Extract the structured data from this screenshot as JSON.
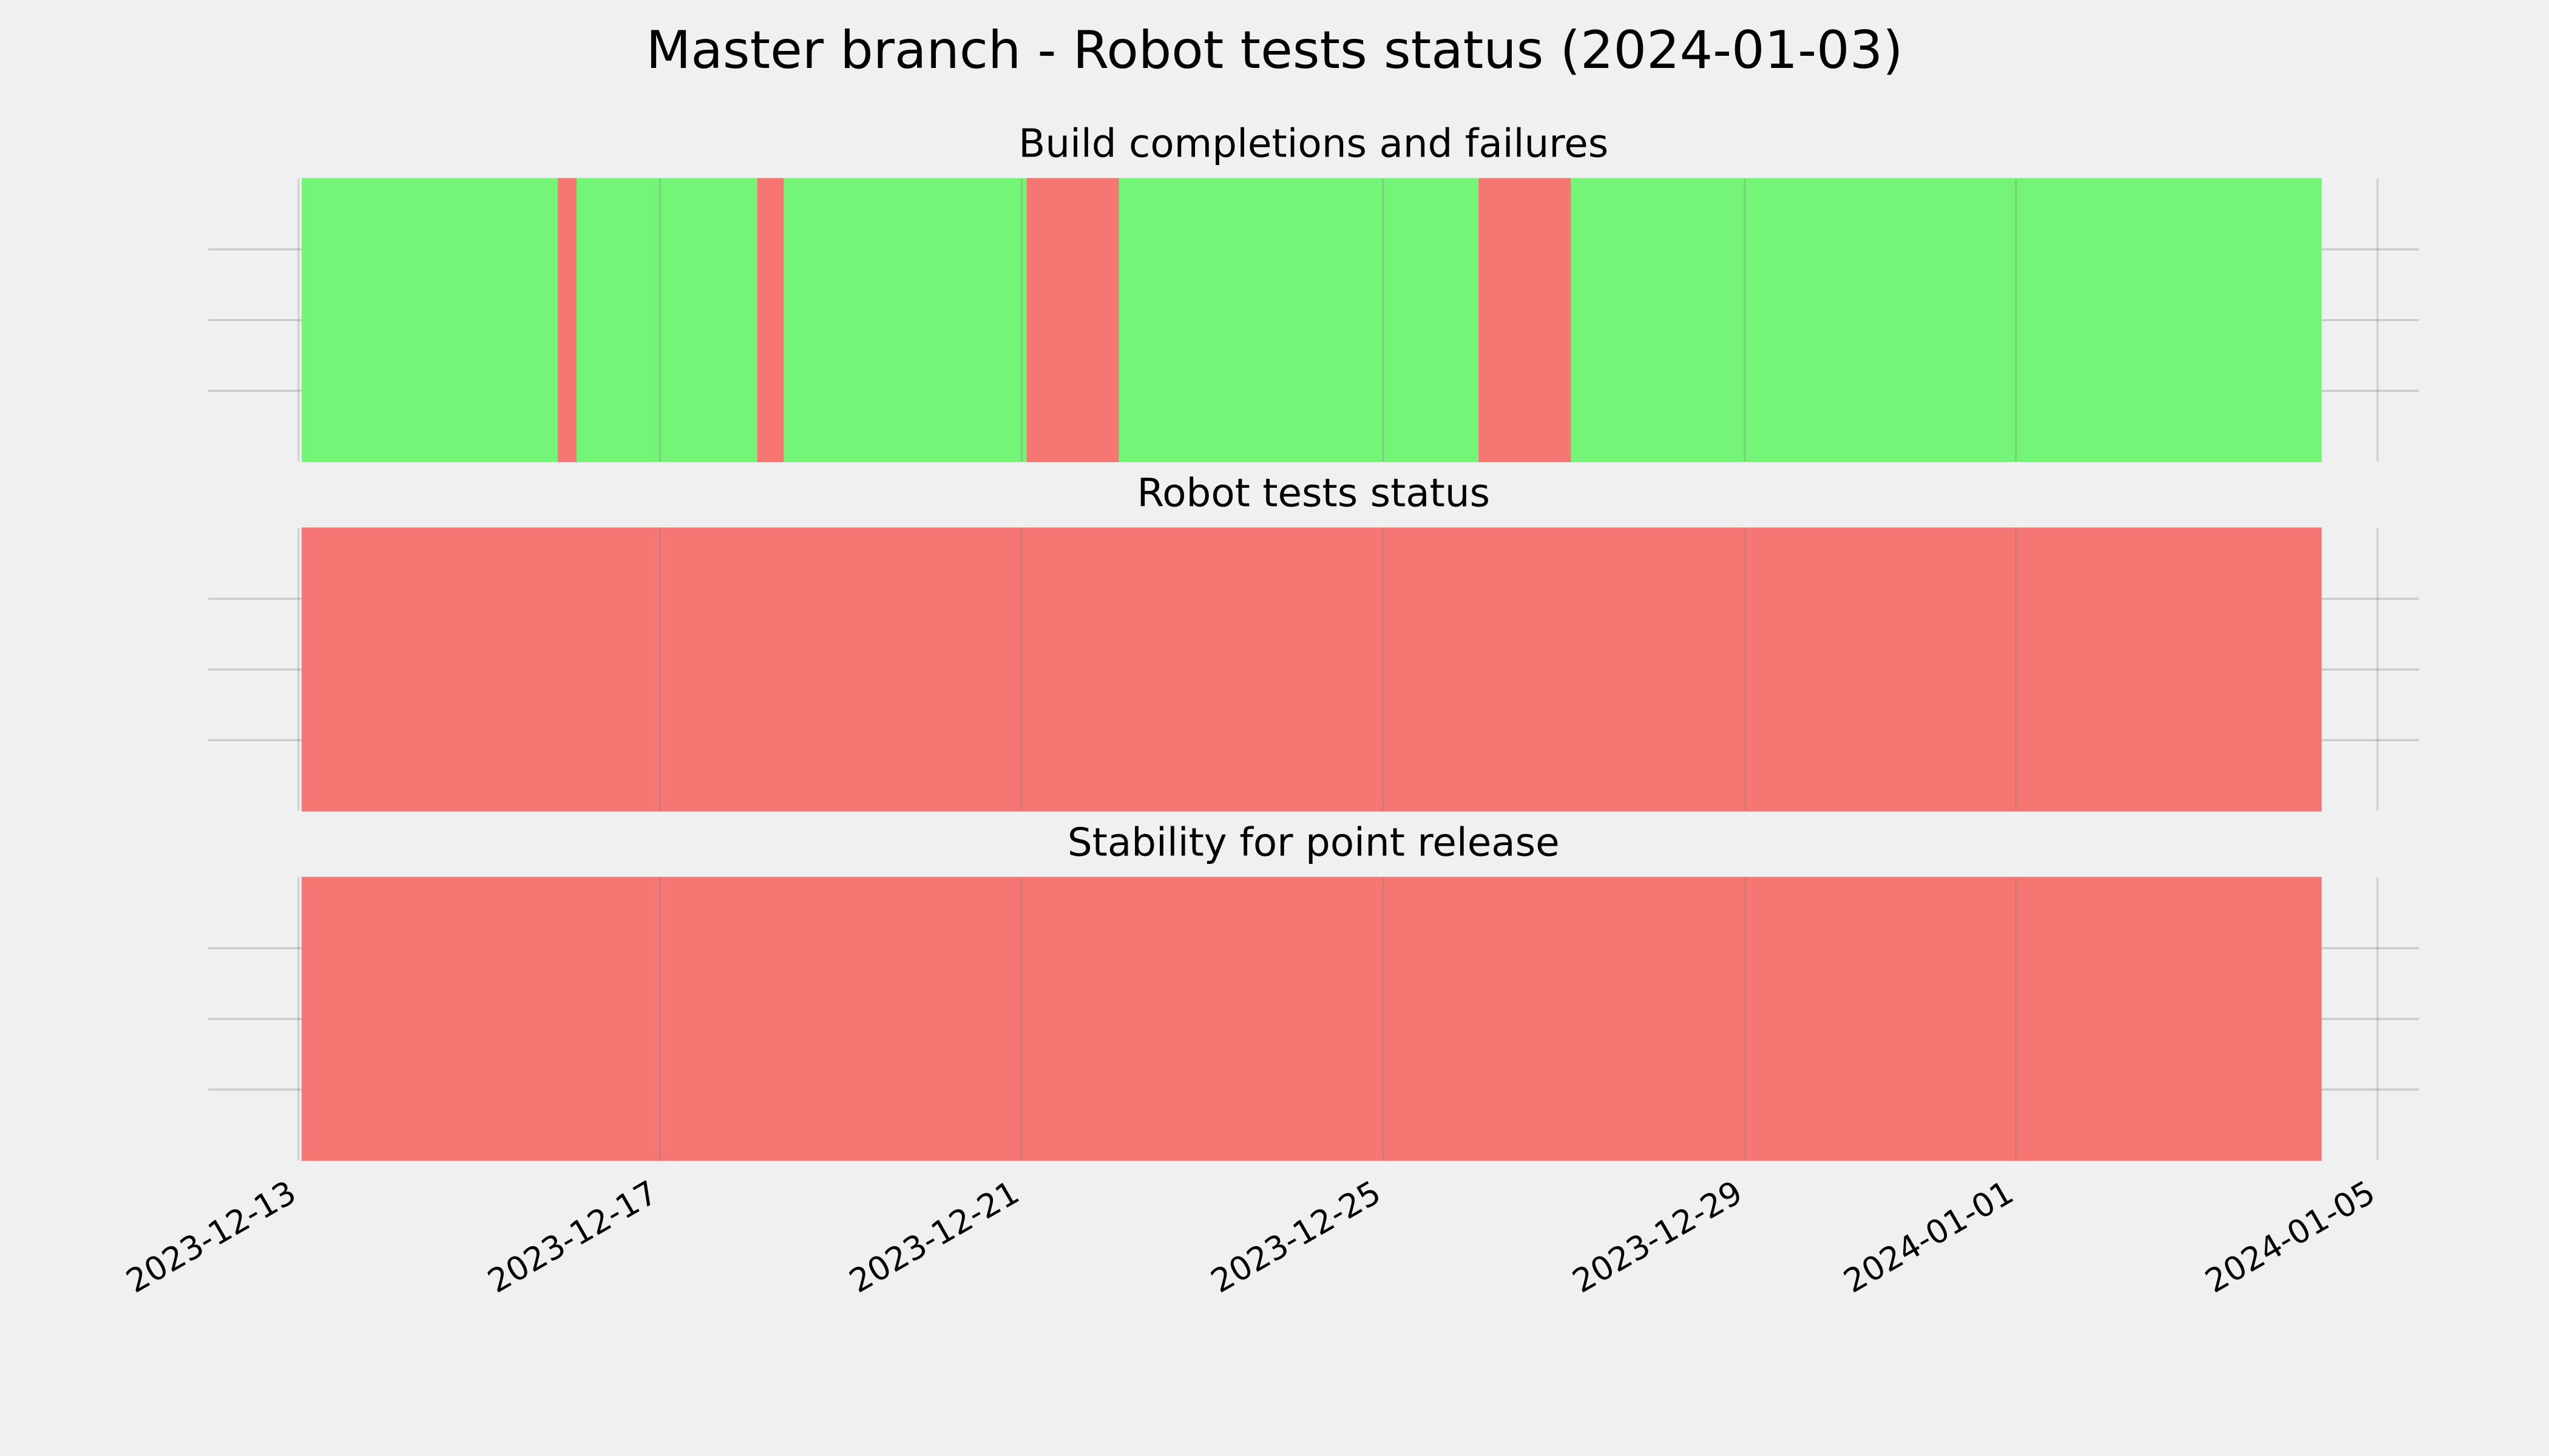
{
  "title": "Master branch - Robot tests status (2024-01-03)",
  "chart_data": [
    {
      "type": "timeline",
      "title": "Build completions and failures",
      "xlim": [
        "2023-12-12T00:00",
        "2024-01-05T11:00"
      ],
      "xticks": [
        "2023-12-13",
        "2023-12-17",
        "2023-12-21",
        "2023-12-25",
        "2023-12-29",
        "2024-01-01",
        "2024-01-05"
      ],
      "ylim": [
        0,
        1
      ],
      "yticks": [
        0.25,
        0.5,
        0.75
      ],
      "grid": true,
      "spans": [
        {
          "start": "2023-12-13T01:00",
          "end": "2023-12-15T21:00",
          "color": "#75f577"
        },
        {
          "start": "2023-12-15T21:00",
          "end": "2023-12-16T02:00",
          "color": "#f67674"
        },
        {
          "start": "2023-12-16T02:00",
          "end": "2023-12-18T02:00",
          "color": "#75f577"
        },
        {
          "start": "2023-12-18T02:00",
          "end": "2023-12-18T09:00",
          "color": "#f67674"
        },
        {
          "start": "2023-12-18T09:00",
          "end": "2023-12-21T01:30",
          "color": "#75f577"
        },
        {
          "start": "2023-12-21T01:30",
          "end": "2023-12-22T02:00",
          "color": "#f67674"
        },
        {
          "start": "2023-12-22T02:00",
          "end": "2023-12-26T01:30",
          "color": "#75f577"
        },
        {
          "start": "2023-12-26T01:30",
          "end": "2023-12-27T02:00",
          "color": "#f67674"
        },
        {
          "start": "2023-12-27T02:00",
          "end": "2024-01-04T09:00",
          "color": "#75f577"
        }
      ]
    },
    {
      "type": "timeline",
      "title": "Robot tests status",
      "xlim": [
        "2023-12-12T00:00",
        "2024-01-05T11:00"
      ],
      "xticks": [
        "2023-12-13",
        "2023-12-17",
        "2023-12-21",
        "2023-12-25",
        "2023-12-29",
        "2024-01-01",
        "2024-01-05"
      ],
      "ylim": [
        0,
        1
      ],
      "yticks": [
        0.25,
        0.5,
        0.75
      ],
      "grid": true,
      "spans": [
        {
          "start": "2023-12-13T01:00",
          "end": "2024-01-04T09:00",
          "color": "#f67674"
        }
      ]
    },
    {
      "type": "timeline",
      "title": "Stability for point release",
      "xlim": [
        "2023-12-12T00:00",
        "2024-01-05T11:00"
      ],
      "xticks": [
        "2023-12-13",
        "2023-12-17",
        "2023-12-21",
        "2023-12-25",
        "2023-12-29",
        "2024-01-01",
        "2024-01-05"
      ],
      "ylim": [
        0,
        1
      ],
      "yticks": [
        0.25,
        0.5,
        0.75
      ],
      "grid": true,
      "spans": [
        {
          "start": "2023-12-13T01:00",
          "end": "2024-01-04T09:00",
          "color": "#f67674"
        }
      ]
    }
  ]
}
